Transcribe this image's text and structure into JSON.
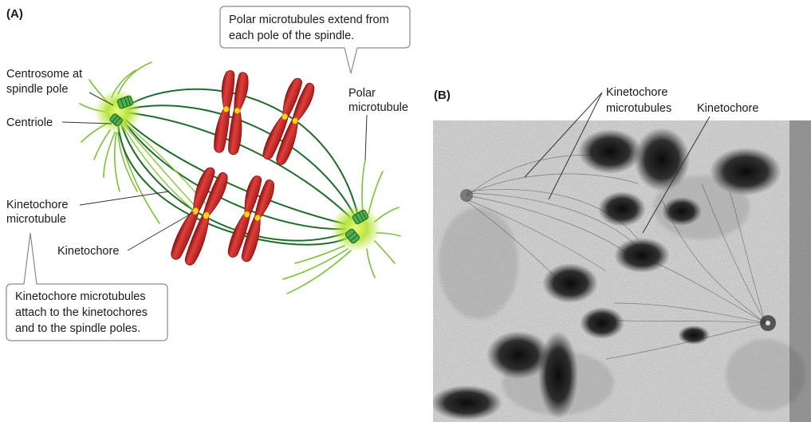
{
  "panel_a": {
    "letter": "(A)",
    "callout_top": {
      "line1": "Polar microtubules extend from",
      "line2": "each pole of the spindle."
    },
    "callout_bottom": {
      "line1": "Kinetochore microtubules",
      "line2": "attach to the kinetochores",
      "line3": "and to the spindle poles."
    },
    "labels": {
      "centrosome_line1": "Centrosome at",
      "centrosome_line2": "spindle pole",
      "centriole": "Centriole",
      "polar_line1": "Polar",
      "polar_line2": "microtubule",
      "kmt_line1": "Kinetochore",
      "kmt_line2": "microtubule",
      "kinetochore": "Kinetochore"
    }
  },
  "panel_b": {
    "letter": "(B)",
    "labels": {
      "kmt_line1": "Kinetochore",
      "kmt_line2": "microtubules",
      "kinetochore": "Kinetochore"
    }
  },
  "colors": {
    "microtubule": "#1f6b2e",
    "centrosome_glow": "#b6e33a",
    "chromosome": "#c8282a",
    "kinetochore": "#ffd21a",
    "callout_border": "#8a8a8a"
  }
}
